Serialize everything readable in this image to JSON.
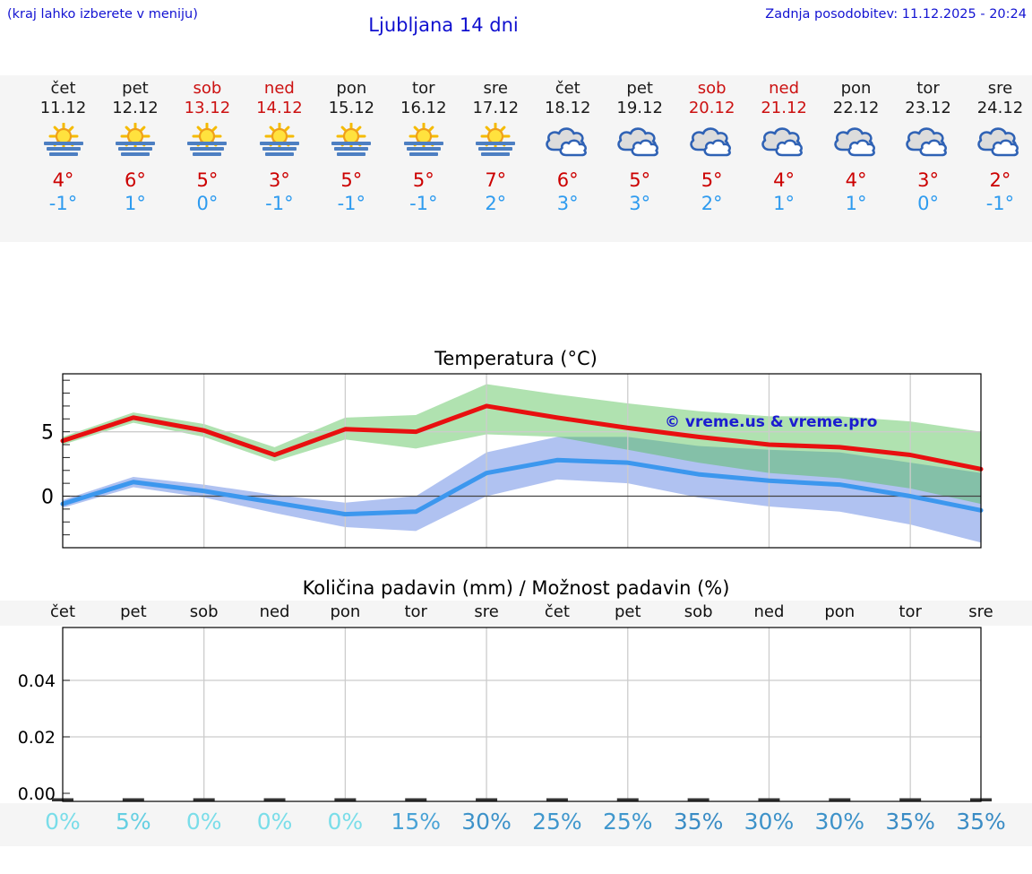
{
  "header": {
    "note_left": "(kraj lahko izberete v meniju)",
    "title": "Ljubljana 14 dni",
    "updated": "Zadnja posodobitev: 11.12.2025 - 20:24"
  },
  "colors": {
    "header_blue": "#1313d2",
    "weekend_red": "#cc1111",
    "high_temp_red": "#cc0000",
    "low_temp_blue": "#2e9bef",
    "strip_bg": "#f5f5f5",
    "sun_yellow": "#ffe23e",
    "fog_bar_blue": "#4d7fc2",
    "cloud_outline_blue": "#2f62b5"
  },
  "forecast": {
    "days": [
      {
        "name": "čet",
        "date": "11.12",
        "weekend": false,
        "icon": "sun-fog",
        "high": "4°",
        "low": "-1°"
      },
      {
        "name": "pet",
        "date": "12.12",
        "weekend": false,
        "icon": "sun-fog",
        "high": "6°",
        "low": "1°"
      },
      {
        "name": "sob",
        "date": "13.12",
        "weekend": true,
        "icon": "sun-fog",
        "high": "5°",
        "low": "0°"
      },
      {
        "name": "ned",
        "date": "14.12",
        "weekend": true,
        "icon": "sun-fog",
        "high": "3°",
        "low": "-1°"
      },
      {
        "name": "pon",
        "date": "15.12",
        "weekend": false,
        "icon": "sun-fog",
        "high": "5°",
        "low": "-1°"
      },
      {
        "name": "tor",
        "date": "16.12",
        "weekend": false,
        "icon": "sun-fog",
        "high": "5°",
        "low": "-1°"
      },
      {
        "name": "sre",
        "date": "17.12",
        "weekend": false,
        "icon": "sun-fog",
        "high": "7°",
        "low": "2°"
      },
      {
        "name": "čet",
        "date": "18.12",
        "weekend": false,
        "icon": "clouds",
        "high": "6°",
        "low": "3°"
      },
      {
        "name": "pet",
        "date": "19.12",
        "weekend": false,
        "icon": "clouds",
        "high": "5°",
        "low": "3°"
      },
      {
        "name": "sob",
        "date": "20.12",
        "weekend": true,
        "icon": "clouds",
        "high": "5°",
        "low": "2°"
      },
      {
        "name": "ned",
        "date": "21.12",
        "weekend": true,
        "icon": "clouds",
        "high": "4°",
        "low": "1°"
      },
      {
        "name": "pon",
        "date": "22.12",
        "weekend": false,
        "icon": "clouds",
        "high": "4°",
        "low": "1°"
      },
      {
        "name": "tor",
        "date": "23.12",
        "weekend": false,
        "icon": "clouds",
        "high": "3°",
        "low": "0°"
      },
      {
        "name": "sre",
        "date": "24.12",
        "weekend": false,
        "icon": "clouds",
        "high": "2°",
        "low": "-1°"
      }
    ],
    "icon_legend": {
      "sun-fog": "sun-fog-icon",
      "clouds": "clouds-icon"
    }
  },
  "chart_data": [
    {
      "type": "line",
      "title": "Temperatura (°C)",
      "watermark": "© vreme.us & vreme.pro",
      "categories": [
        "čet 11.12",
        "pet 12.12",
        "sob 13.12",
        "ned 14.12",
        "pon 15.12",
        "tor 16.12",
        "sre 17.12",
        "čet 18.12",
        "pet 19.12",
        "sob 20.12",
        "ned 21.12",
        "pon 22.12",
        "tor 23.12",
        "sre 24.12"
      ],
      "ylim": [
        -4,
        9.5
      ],
      "yticks": [
        0,
        5
      ],
      "grid": true,
      "legend_position": "none",
      "series": [
        {
          "name": "max-temperature",
          "color": "#e81010",
          "values": [
            4.3,
            6.1,
            5.1,
            3.2,
            5.2,
            5.0,
            7.0,
            6.1,
            5.3,
            4.6,
            4.0,
            3.8,
            3.2,
            2.1
          ],
          "band_upper": [
            4.6,
            6.5,
            5.6,
            3.8,
            6.1,
            6.3,
            8.7,
            7.9,
            7.2,
            6.6,
            6.2,
            6.2,
            5.8,
            5.0
          ],
          "band_lower": [
            4.0,
            5.7,
            4.6,
            2.7,
            4.4,
            3.7,
            4.8,
            4.6,
            3.6,
            2.6,
            1.8,
            1.4,
            0.6,
            -0.6
          ],
          "band_color": "rgba(80,190,80,0.45)"
        },
        {
          "name": "min-temperature",
          "color": "#3c97ee",
          "values": [
            -0.6,
            1.1,
            0.4,
            -0.5,
            -1.4,
            -1.2,
            1.8,
            2.8,
            2.6,
            1.7,
            1.2,
            0.9,
            0.0,
            -1.1
          ],
          "band_upper": [
            -0.3,
            1.5,
            0.9,
            0.1,
            -0.5,
            0.0,
            3.4,
            4.6,
            4.6,
            3.9,
            3.6,
            3.4,
            2.6,
            1.8
          ],
          "band_lower": [
            -0.9,
            0.7,
            -0.1,
            -1.3,
            -2.4,
            -2.7,
            0.0,
            1.3,
            1.0,
            -0.1,
            -0.8,
            -1.2,
            -2.2,
            -3.6
          ],
          "band_color": "rgba(80,120,225,0.45)"
        }
      ]
    },
    {
      "type": "bar",
      "title": "Količina padavin (mm) / Možnost padavin (%)",
      "categories": [
        "čet",
        "pet",
        "sob",
        "ned",
        "pon",
        "tor",
        "sre",
        "čet",
        "pet",
        "sob",
        "ned",
        "pon",
        "tor",
        "sre"
      ],
      "values": [
        0,
        0,
        0,
        0,
        0,
        0,
        0,
        0,
        0,
        0,
        0,
        0,
        0,
        0
      ],
      "ylim": [
        -0.003,
        0.057
      ],
      "yticks": [
        "0.00",
        "0.02",
        "0.04"
      ],
      "grid": true,
      "probabilities": [
        {
          "label": "0%",
          "color": "#7adde9"
        },
        {
          "label": "5%",
          "color": "#65cfe2"
        },
        {
          "label": "0%",
          "color": "#7adde9"
        },
        {
          "label": "0%",
          "color": "#7adde9"
        },
        {
          "label": "0%",
          "color": "#7adde9"
        },
        {
          "label": "15%",
          "color": "#4aa3d6"
        },
        {
          "label": "30%",
          "color": "#3d92c9"
        },
        {
          "label": "25%",
          "color": "#4097cd"
        },
        {
          "label": "25%",
          "color": "#4097cd"
        },
        {
          "label": "35%",
          "color": "#3a8cc5"
        },
        {
          "label": "30%",
          "color": "#3d92c9"
        },
        {
          "label": "30%",
          "color": "#3d92c9"
        },
        {
          "label": "35%",
          "color": "#3a8cc5"
        },
        {
          "label": "35%",
          "color": "#3a8cc5"
        }
      ]
    }
  ]
}
